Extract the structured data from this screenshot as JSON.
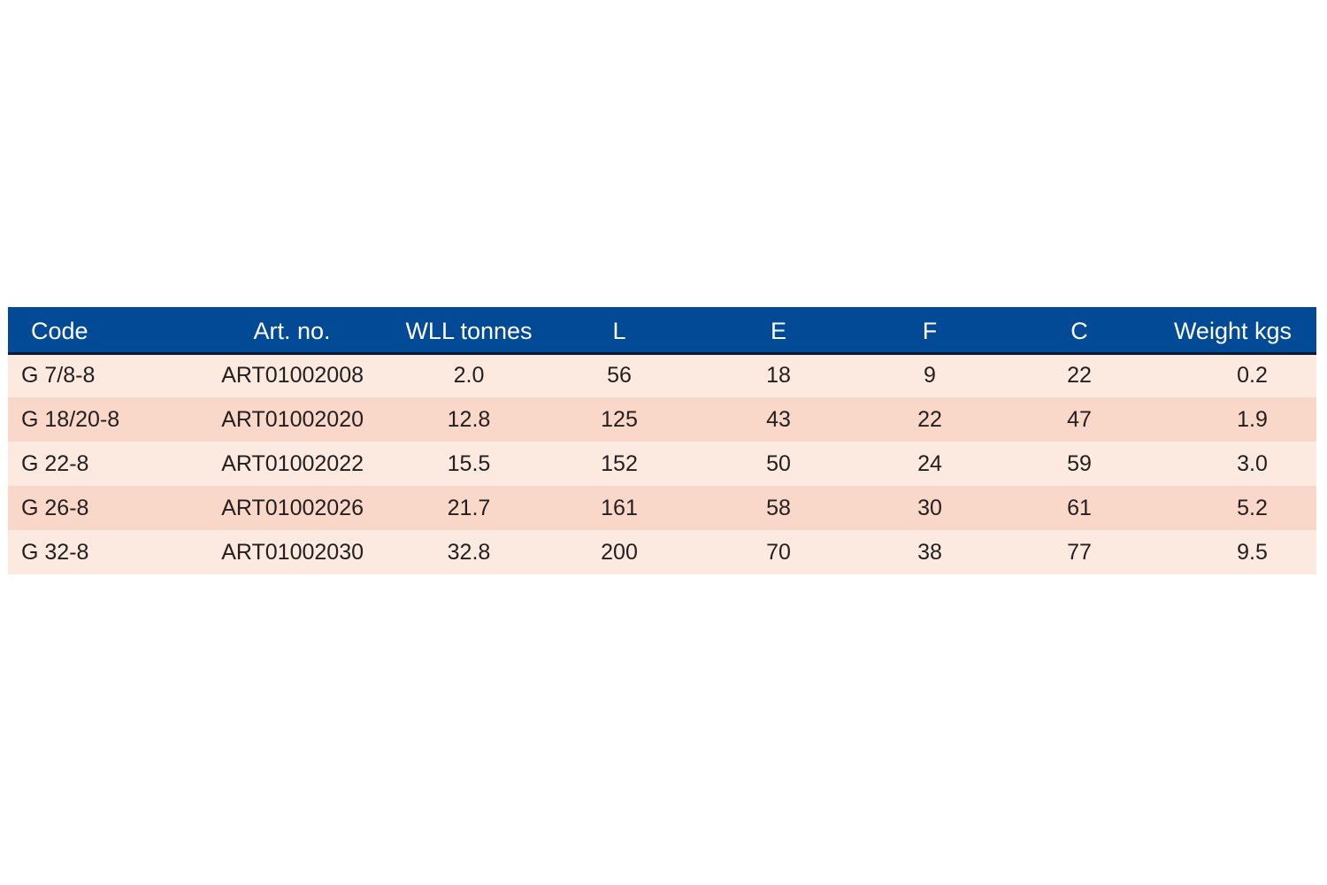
{
  "table": {
    "headers": {
      "code": "Code",
      "art_no": "Art. no.",
      "wll": "WLL tonnes",
      "l": "L",
      "e": "E",
      "f": "F",
      "c": "C",
      "weight": "Weight kgs"
    },
    "rows": [
      {
        "code": "G 7/8-8",
        "art_no": "ART01002008",
        "wll": "2.0",
        "l": "56",
        "e": "18",
        "f": "9",
        "c": "22",
        "weight": "0.2"
      },
      {
        "code": "G 18/20-8",
        "art_no": "ART01002020",
        "wll": "12.8",
        "l": "125",
        "e": "43",
        "f": "22",
        "c": "47",
        "weight": "1.9"
      },
      {
        "code": "G 22-8",
        "art_no": "ART01002022",
        "wll": "15.5",
        "l": "152",
        "e": "50",
        "f": "24",
        "c": "59",
        "weight": "3.0"
      },
      {
        "code": "G 26-8",
        "art_no": "ART01002026",
        "wll": "21.7",
        "l": "161",
        "e": "58",
        "f": "30",
        "c": "61",
        "weight": "5.2"
      },
      {
        "code": "G 32-8",
        "art_no": "ART01002030",
        "wll": "32.8",
        "l": "200",
        "e": "70",
        "f": "38",
        "c": "77",
        "weight": "9.5"
      }
    ]
  },
  "colors": {
    "header_bg": "#034a96",
    "header_text": "#ffffff",
    "row_light": "#fce9e0",
    "row_dark": "#f9d7c9",
    "body_text": "#231f20"
  }
}
